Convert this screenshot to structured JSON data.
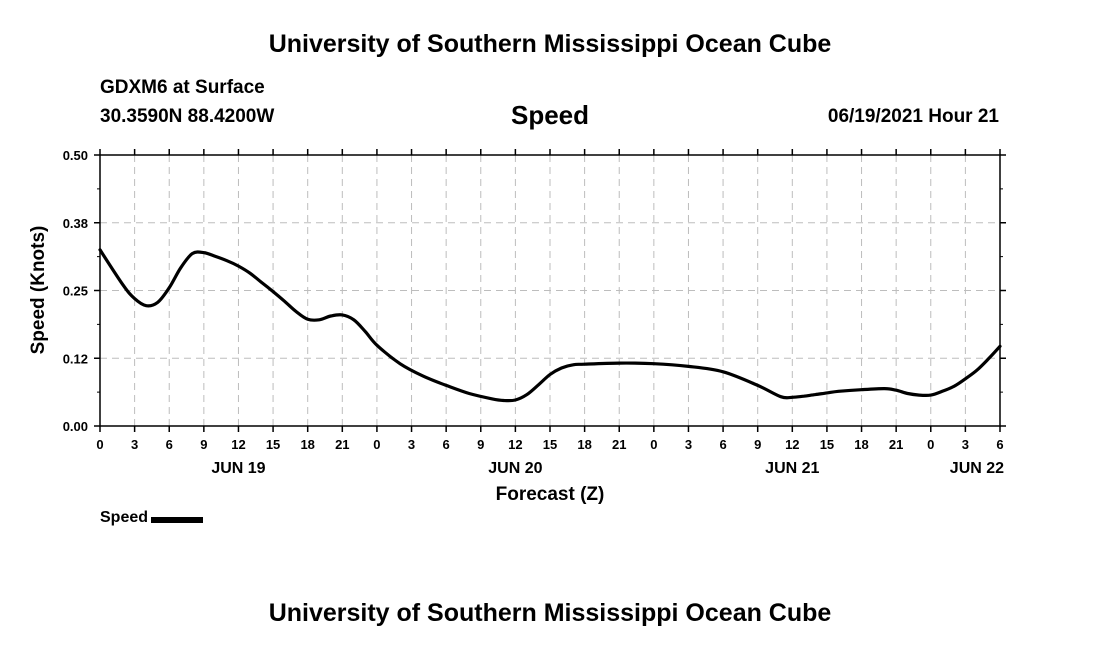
{
  "header": {
    "title": "University of Southern Mississippi Ocean Cube",
    "station": "GDXM6 at Surface",
    "coordinates": "30.3590N  88.4200W",
    "timestamp": "06/19/2021 Hour 21"
  },
  "footer": {
    "title": "University of Southern Mississippi Ocean Cube"
  },
  "chart_data": {
    "type": "line",
    "title": "Speed",
    "xlabel": "Forecast (Z)",
    "ylabel": "Speed (Knots)",
    "ylim": [
      0,
      0.5
    ],
    "xlim_hours": [
      0,
      78
    ],
    "y_ticks": [
      "0.00",
      "0.12",
      "0.25",
      "0.38",
      "0.50"
    ],
    "x_tick_step_hours": 3,
    "x_tick_labels": [
      "0",
      "3",
      "6",
      "9",
      "12",
      "15",
      "18",
      "21",
      "0",
      "3",
      "6",
      "9",
      "12",
      "15",
      "18",
      "21",
      "0",
      "3",
      "6",
      "9",
      "12",
      "15",
      "18",
      "21",
      "0",
      "3",
      "6"
    ],
    "date_labels": [
      {
        "label": "JUN 19",
        "hour": 12
      },
      {
        "label": "JUN 20",
        "hour": 36
      },
      {
        "label": "JUN 21",
        "hour": 60
      },
      {
        "label": "JUN 22",
        "hour": 76
      }
    ],
    "grid": true,
    "legend_position": "bottom-left",
    "color": "#000000",
    "series": [
      {
        "name": "Speed",
        "x_hours": [
          0,
          2,
          3,
          4,
          5,
          6,
          7,
          8,
          9,
          10,
          11,
          12,
          13,
          14,
          15,
          16,
          17,
          18,
          19,
          20,
          21,
          22,
          23,
          24,
          26,
          28,
          30,
          32,
          34,
          35,
          36,
          37,
          38,
          39,
          40,
          41,
          42,
          45,
          48,
          51,
          54,
          57,
          59,
          60,
          61,
          62,
          63,
          64,
          66,
          68,
          69,
          70,
          71,
          72,
          73,
          74,
          75,
          76,
          77,
          78
        ],
        "values": [
          0.325,
          0.26,
          0.235,
          0.222,
          0.228,
          0.255,
          0.292,
          0.318,
          0.32,
          0.313,
          0.305,
          0.295,
          0.282,
          0.265,
          0.248,
          0.23,
          0.211,
          0.197,
          0.196,
          0.203,
          0.205,
          0.196,
          0.174,
          0.149,
          0.115,
          0.092,
          0.075,
          0.06,
          0.05,
          0.047,
          0.048,
          0.058,
          0.076,
          0.095,
          0.107,
          0.113,
          0.114,
          0.116,
          0.115,
          0.11,
          0.1,
          0.075,
          0.054,
          0.053,
          0.055,
          0.058,
          0.061,
          0.064,
          0.067,
          0.069,
          0.066,
          0.06,
          0.057,
          0.057,
          0.064,
          0.073,
          0.087,
          0.103,
          0.124,
          0.147
        ]
      }
    ]
  }
}
